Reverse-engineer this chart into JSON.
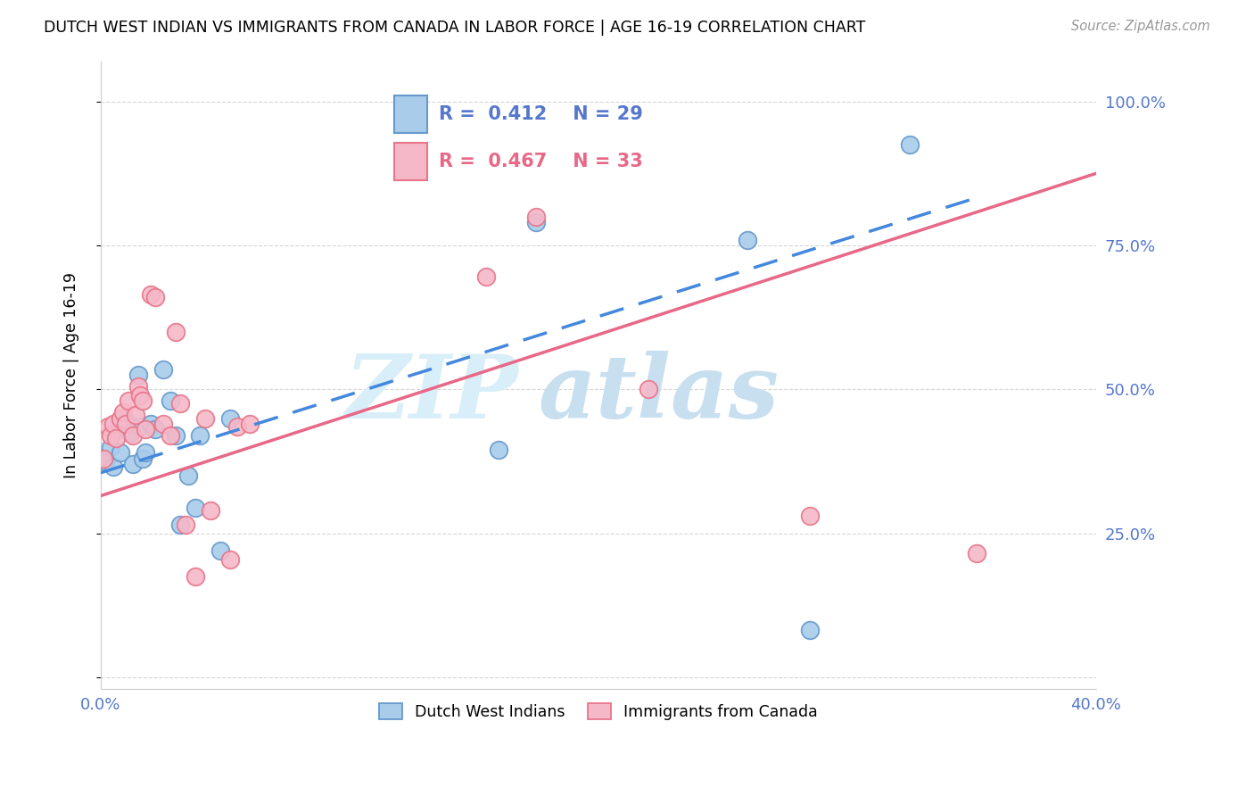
{
  "title": "DUTCH WEST INDIAN VS IMMIGRANTS FROM CANADA IN LABOR FORCE | AGE 16-19 CORRELATION CHART",
  "source": "Source: ZipAtlas.com",
  "ylabel": "In Labor Force | Age 16-19",
  "xlim": [
    0.0,
    0.4
  ],
  "ylim": [
    -0.02,
    1.07
  ],
  "yticks": [
    0.0,
    0.25,
    0.5,
    0.75,
    1.0
  ],
  "xticks": [
    0.0,
    0.1,
    0.2,
    0.3,
    0.4
  ],
  "blue_R": 0.412,
  "blue_N": 29,
  "pink_R": 0.467,
  "pink_N": 33,
  "blue_color": "#A8CCEA",
  "pink_color": "#F5B8C8",
  "blue_edge": "#6699CC",
  "pink_edge": "#E8758A",
  "trend_blue": "#4488DD",
  "trend_pink": "#E86888",
  "axis_tick_color": "#5577CC",
  "watermark_zip_color": "#D8EEF8",
  "watermark_atlas_color": "#C8DFF0",
  "blue_scatter_x": [
    0.002,
    0.004,
    0.005,
    0.007,
    0.008,
    0.009,
    0.01,
    0.012,
    0.013,
    0.015,
    0.016,
    0.017,
    0.018,
    0.02,
    0.022,
    0.025,
    0.028,
    0.03,
    0.032,
    0.035,
    0.038,
    0.04,
    0.048,
    0.052,
    0.16,
    0.175,
    0.26,
    0.285,
    0.325
  ],
  "blue_scatter_y": [
    0.375,
    0.4,
    0.365,
    0.43,
    0.39,
    0.435,
    0.445,
    0.425,
    0.37,
    0.525,
    0.435,
    0.38,
    0.39,
    0.44,
    0.43,
    0.535,
    0.48,
    0.42,
    0.265,
    0.35,
    0.295,
    0.42,
    0.22,
    0.45,
    0.395,
    0.79,
    0.76,
    0.082,
    0.925
  ],
  "pink_scatter_x": [
    0.001,
    0.003,
    0.004,
    0.005,
    0.006,
    0.008,
    0.009,
    0.01,
    0.011,
    0.013,
    0.014,
    0.015,
    0.016,
    0.017,
    0.018,
    0.02,
    0.022,
    0.025,
    0.028,
    0.03,
    0.032,
    0.034,
    0.038,
    0.042,
    0.044,
    0.052,
    0.055,
    0.06,
    0.155,
    0.175,
    0.22,
    0.285,
    0.352
  ],
  "pink_scatter_y": [
    0.38,
    0.435,
    0.42,
    0.44,
    0.415,
    0.45,
    0.46,
    0.44,
    0.48,
    0.42,
    0.455,
    0.505,
    0.49,
    0.48,
    0.43,
    0.665,
    0.66,
    0.44,
    0.42,
    0.6,
    0.475,
    0.265,
    0.175,
    0.45,
    0.29,
    0.205,
    0.435,
    0.44,
    0.695,
    0.8,
    0.5,
    0.28,
    0.215
  ],
  "blue_line_x": [
    0.0,
    0.35
  ],
  "blue_line_y": [
    0.355,
    0.83
  ],
  "pink_line_x": [
    0.0,
    0.4
  ],
  "pink_line_y": [
    0.315,
    0.875
  ],
  "legend_blue_label": "Dutch West Indians",
  "legend_pink_label": "Immigrants from Canada"
}
